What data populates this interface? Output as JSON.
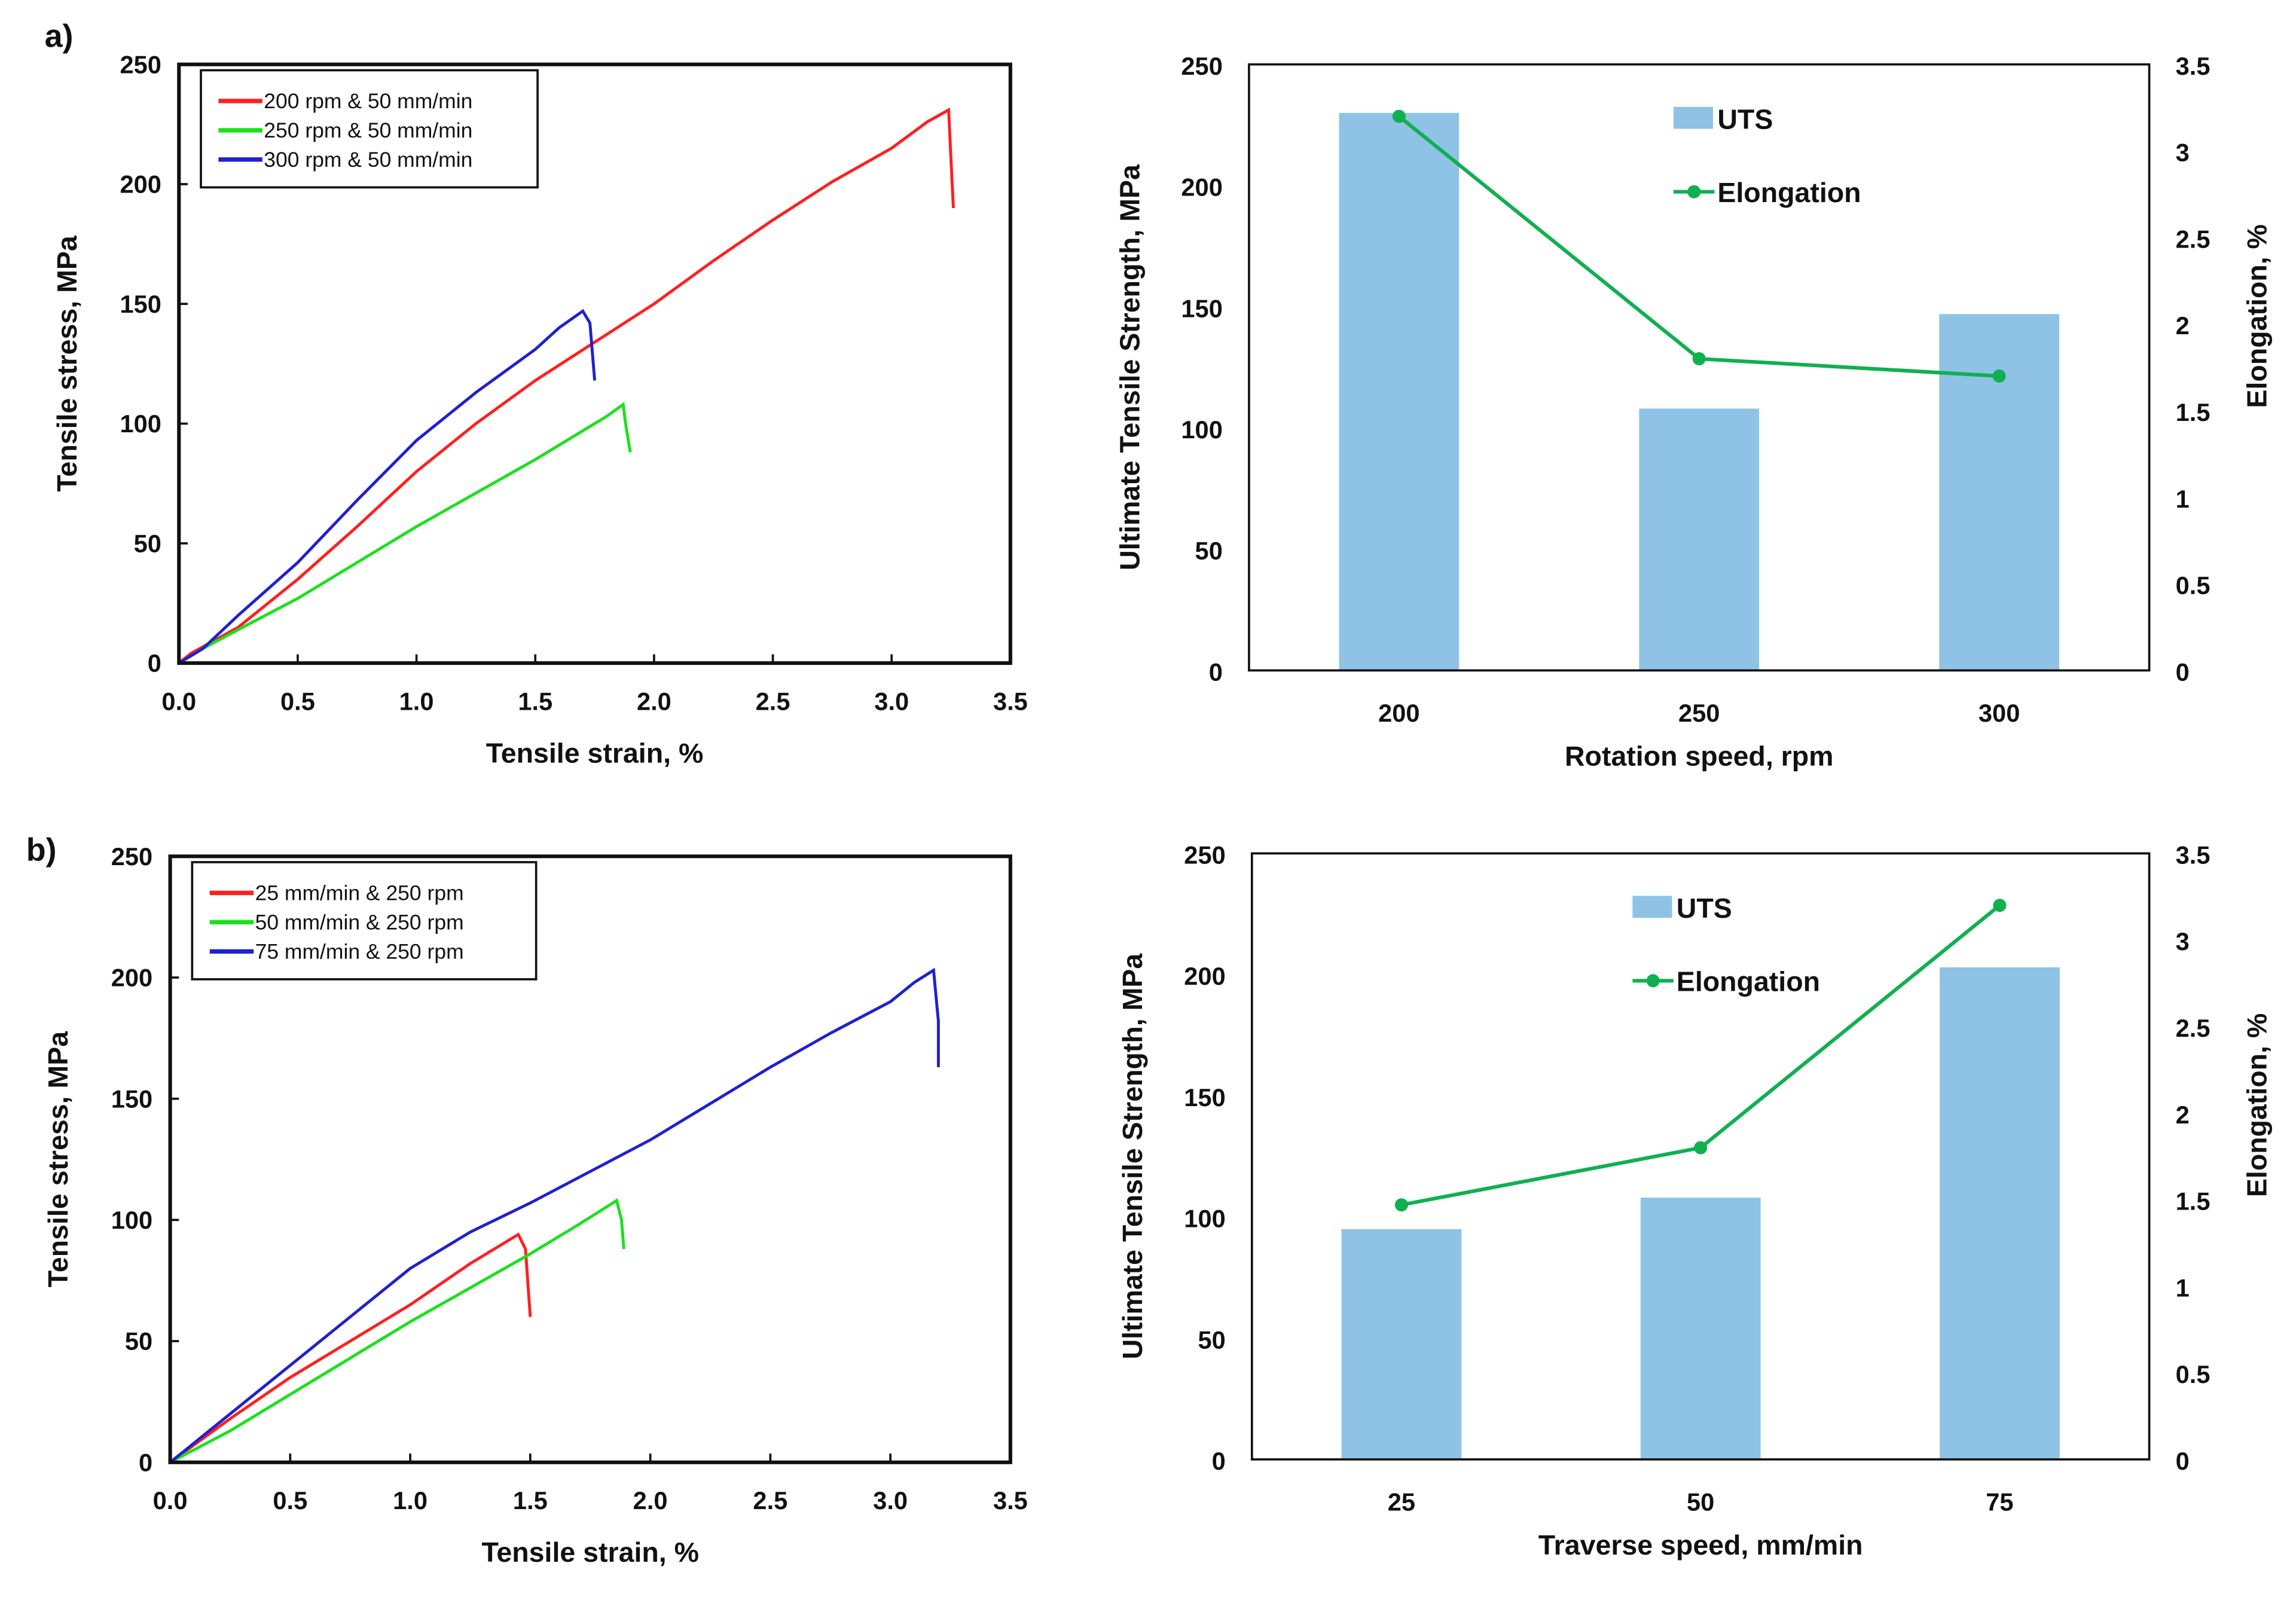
{
  "colors": {
    "red": "#ff1f1f",
    "green": "#18e21a",
    "blue": "#2020d0",
    "bar": "#8ec3e6",
    "elong": "#10b050"
  },
  "chart_data": [
    {
      "panel_label": "a)",
      "type": "line",
      "xlabel": "Tensile strain, %",
      "ylabel": "Tensile stress, MPa",
      "xlim": [
        0,
        3.5
      ],
      "ylim": [
        0,
        250
      ],
      "xticks": [
        "0.0",
        "0.5",
        "1.0",
        "1.5",
        "2.0",
        "2.5",
        "3.0",
        "3.5"
      ],
      "yticks": [
        "0",
        "50",
        "100",
        "150",
        "200",
        "250"
      ],
      "legend_position": "top-left",
      "series": [
        {
          "name": "200 rpm & 50 mm/min",
          "color": "red",
          "points": [
            [
              0,
              0
            ],
            [
              0.05,
              4
            ],
            [
              0.25,
              15
            ],
            [
              0.5,
              35
            ],
            [
              0.75,
              57
            ],
            [
              1.0,
              80
            ],
            [
              1.25,
              100
            ],
            [
              1.5,
              118
            ],
            [
              1.75,
              134
            ],
            [
              2.0,
              150
            ],
            [
              2.25,
              168
            ],
            [
              2.5,
              185
            ],
            [
              2.75,
              201
            ],
            [
              3.0,
              215
            ],
            [
              3.15,
              226
            ],
            [
              3.24,
              231
            ],
            [
              3.25,
              210
            ],
            [
              3.26,
              190
            ]
          ]
        },
        {
          "name": "250 rpm & 50 mm/min",
          "color": "green",
          "points": [
            [
              0,
              0
            ],
            [
              0.1,
              6
            ],
            [
              0.25,
              14
            ],
            [
              0.5,
              27
            ],
            [
              0.75,
              42
            ],
            [
              1.0,
              57
            ],
            [
              1.25,
              71
            ],
            [
              1.5,
              85
            ],
            [
              1.7,
              97
            ],
            [
              1.8,
              103
            ],
            [
              1.87,
              108
            ],
            [
              1.88,
              100
            ],
            [
              1.9,
              88
            ]
          ]
        },
        {
          "name": "300 rpm & 50 mm/min",
          "color": "blue",
          "points": [
            [
              0,
              0
            ],
            [
              0.1,
              6
            ],
            [
              0.25,
              20
            ],
            [
              0.5,
              42
            ],
            [
              0.75,
              68
            ],
            [
              1.0,
              93
            ],
            [
              1.25,
              113
            ],
            [
              1.5,
              131
            ],
            [
              1.6,
              140
            ],
            [
              1.7,
              147
            ],
            [
              1.73,
              142
            ],
            [
              1.74,
              130
            ],
            [
              1.75,
              118
            ]
          ]
        }
      ]
    },
    {
      "type": "bar",
      "xlabel": "Rotation speed, rpm",
      "ylabel": "Ultimate Tensile Strength, MPa",
      "y2label": "Elongation, %",
      "categories": [
        "200",
        "250",
        "300"
      ],
      "ylim": [
        0,
        250
      ],
      "y2lim": [
        0,
        3.5
      ],
      "yticks": [
        "0",
        "50",
        "100",
        "150",
        "200",
        "250"
      ],
      "y2ticks": [
        "0",
        "0.5",
        "1",
        "1.5",
        "2",
        "2.5",
        "3",
        "3.5"
      ],
      "series": [
        {
          "name": "UTS",
          "kind": "bar",
          "axis": "left",
          "values": [
            230,
            108,
            147
          ]
        },
        {
          "name": "Elongation",
          "kind": "line",
          "axis": "right",
          "values": [
            3.2,
            1.8,
            1.7
          ]
        }
      ]
    },
    {
      "panel_label": "b)",
      "type": "line",
      "xlabel": "Tensile strain, %",
      "ylabel": "Tensile stress, MPa",
      "xlim": [
        0,
        3.5
      ],
      "ylim": [
        0,
        250
      ],
      "xticks": [
        "0.0",
        "0.5",
        "1.0",
        "1.5",
        "2.0",
        "2.5",
        "3.0",
        "3.5"
      ],
      "yticks": [
        "0",
        "50",
        "100",
        "150",
        "200",
        "250"
      ],
      "legend_position": "top-left",
      "series": [
        {
          "name": "25 mm/min & 250 rpm",
          "color": "red",
          "points": [
            [
              0,
              0
            ],
            [
              0.25,
              18
            ],
            [
              0.5,
              35
            ],
            [
              0.75,
              50
            ],
            [
              1.0,
              65
            ],
            [
              1.25,
              82
            ],
            [
              1.45,
              94
            ],
            [
              1.48,
              88
            ],
            [
              1.5,
              60
            ]
          ]
        },
        {
          "name": "50 mm/min & 250 rpm",
          "color": "green",
          "points": [
            [
              0,
              0
            ],
            [
              0.25,
              13
            ],
            [
              0.5,
              28
            ],
            [
              0.75,
              43
            ],
            [
              1.0,
              58
            ],
            [
              1.25,
              72
            ],
            [
              1.5,
              86
            ],
            [
              1.7,
              98
            ],
            [
              1.86,
              108
            ],
            [
              1.88,
              100
            ],
            [
              1.89,
              88
            ]
          ]
        },
        {
          "name": "75 mm/min & 250 rpm",
          "color": "blue",
          "points": [
            [
              0,
              0
            ],
            [
              0.25,
              20
            ],
            [
              0.5,
              40
            ],
            [
              0.75,
              60
            ],
            [
              1.0,
              80
            ],
            [
              1.25,
              95
            ],
            [
              1.5,
              107
            ],
            [
              1.75,
              120
            ],
            [
              2.0,
              133
            ],
            [
              2.25,
              148
            ],
            [
              2.5,
              163
            ],
            [
              2.75,
              177
            ],
            [
              3.0,
              190
            ],
            [
              3.1,
              198
            ],
            [
              3.18,
              203
            ],
            [
              3.2,
              182
            ],
            [
              3.2,
              163
            ]
          ]
        }
      ]
    },
    {
      "type": "bar",
      "xlabel": "Traverse speed, mm/min",
      "ylabel": "Ultimate Tensile Strength, MPa",
      "y2label": "Elongation, %",
      "categories": [
        "25",
        "50",
        "75"
      ],
      "ylim": [
        0,
        250
      ],
      "y2lim": [
        0,
        3.5
      ],
      "yticks": [
        "0",
        "50",
        "100",
        "150",
        "200",
        "250"
      ],
      "y2ticks": [
        "0",
        "0.5",
        "1",
        "1.5",
        "2",
        "2.5",
        "3",
        "3.5"
      ],
      "series": [
        {
          "name": "UTS",
          "kind": "bar",
          "axis": "left",
          "values": [
            95,
            108,
            203
          ]
        },
        {
          "name": "Elongation",
          "kind": "line",
          "axis": "right",
          "values": [
            1.47,
            1.8,
            3.2
          ]
        }
      ]
    }
  ]
}
